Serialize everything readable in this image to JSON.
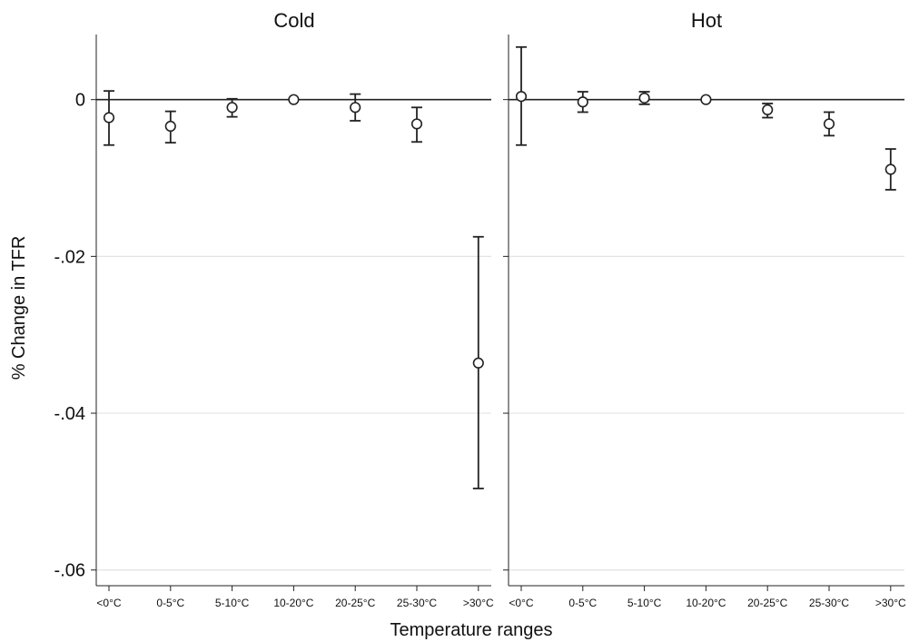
{
  "chart_data": {
    "type": "scatter",
    "ylabel": "% Change in TFR",
    "xlabel": "Temperature ranges",
    "ylim": [
      -0.062,
      0.0083
    ],
    "yticks": [
      0,
      -0.02,
      -0.04,
      -0.06
    ],
    "ytick_labels": [
      "0",
      "-.02",
      "-.04",
      "-.06"
    ],
    "reference_line": 0,
    "grid": "horizontal",
    "categories": [
      "<0°C",
      "0-5°C",
      "5-10°C",
      "10-20°C",
      "20-25°C",
      "25-30°C",
      ">30°C"
    ],
    "panels": [
      {
        "title": "Cold",
        "estimate": [
          -0.0023,
          -0.0034,
          -0.001,
          0.0,
          -0.001,
          -0.0031,
          -0.0336
        ],
        "ci_low": [
          -0.0058,
          -0.0055,
          -0.0022,
          0.0,
          -0.0027,
          -0.0054,
          -0.0496
        ],
        "ci_high": [
          0.0011,
          -0.0015,
          0.0001,
          0.0,
          0.0007,
          -0.001,
          -0.0175
        ]
      },
      {
        "title": "Hot",
        "estimate": [
          0.0004,
          -0.0003,
          0.0002,
          0.0,
          -0.0013,
          -0.0031,
          -0.0089
        ],
        "ci_low": [
          -0.0058,
          -0.0016,
          -0.0006,
          0.0,
          -0.0023,
          -0.0046,
          -0.0115
        ],
        "ci_high": [
          0.0067,
          0.001,
          0.001,
          0.0,
          -0.0005,
          -0.0016,
          -0.0063
        ]
      }
    ]
  }
}
